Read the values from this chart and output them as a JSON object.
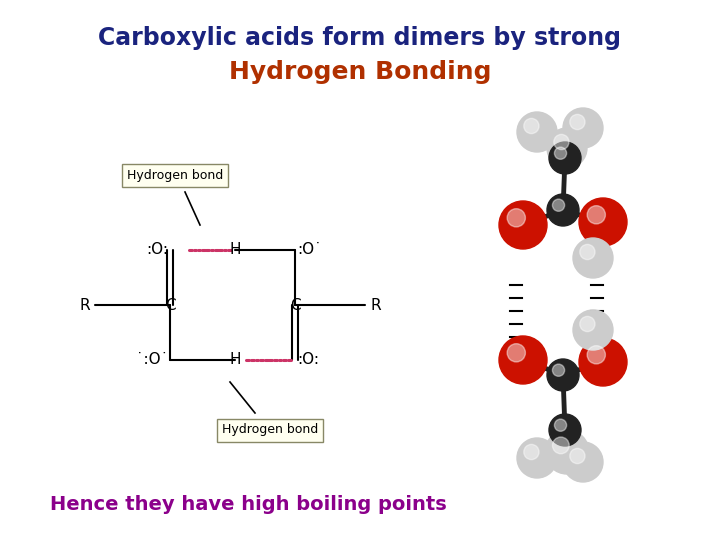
{
  "title_line1": "Carboxylic acids form dimers by strong",
  "title_line2": "Hydrogen Bonding",
  "title_line1_color": "#1a237e",
  "title_line2_color": "#b03000",
  "subtitle": "Hence they have high boiling points",
  "subtitle_color": "#8b008b",
  "bg_color": "#ffffff",
  "title_fontsize": 17,
  "title2_fontsize": 18,
  "subtitle_fontsize": 14,
  "hbond_label": "Hydrogen bond",
  "hbond_box_color": "#fffff0",
  "C_color": "#222222",
  "O_color": "#cc1100",
  "H_color": "#cccccc",
  "bond_color": "#222222"
}
